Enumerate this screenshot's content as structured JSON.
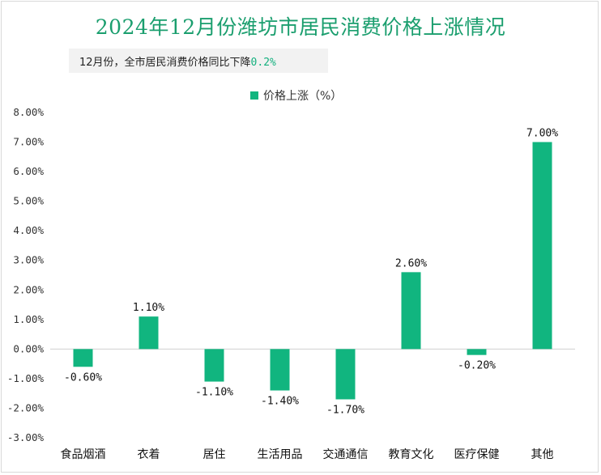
{
  "header": {
    "title": "2024年12月份潍坊市居民消费价格上涨情况",
    "note_prefix": "12月份，全市居民消费价格同比下降",
    "note_value": "0.2%"
  },
  "colors": {
    "bar": "#11b57f",
    "title": "#1a9e6e"
  },
  "chart_data": {
    "type": "bar",
    "legend": "价格上涨（%）",
    "legend_position": "top-center",
    "categories": [
      "食品烟酒",
      "衣着",
      "居住",
      "生活用品",
      "交通通信",
      "教育文化",
      "医疗保健",
      "其他"
    ],
    "values": [
      -0.6,
      1.1,
      -1.1,
      -1.4,
      -1.7,
      2.6,
      -0.2,
      7.0
    ],
    "data_labels": [
      "-0.60%",
      "1.10%",
      "-1.10%",
      "-1.40%",
      "-1.70%",
      "2.60%",
      "-0.20%",
      "7.00%"
    ],
    "y_ticks": [
      "8.00%",
      "7.00%",
      "6.00%",
      "5.00%",
      "4.00%",
      "3.00%",
      "2.00%",
      "1.00%",
      "0.00%",
      "-1.00%",
      "-2.00%",
      "-3.00%"
    ],
    "ylim": [
      -3,
      8
    ],
    "grid": false
  }
}
